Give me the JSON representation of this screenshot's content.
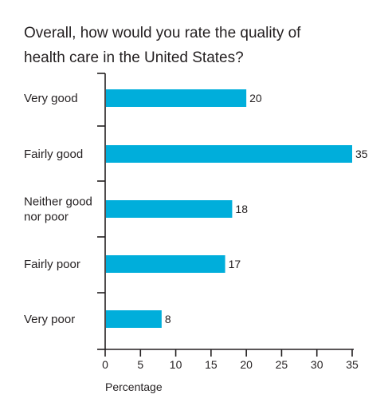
{
  "title_lines": [
    "Overall, how would you rate the quality of",
    "health care in the United States?"
  ],
  "chart_data": {
    "type": "bar",
    "orientation": "horizontal",
    "title": "Overall, how would you rate the quality of health care in the United States?",
    "categories": [
      [
        "Very good"
      ],
      [
        "Fairly good"
      ],
      [
        "Neither good",
        "nor poor"
      ],
      [
        "Fairly poor"
      ],
      [
        "Very poor"
      ]
    ],
    "values": [
      20,
      35,
      18,
      17,
      8
    ],
    "xlabel": "Percentage",
    "xlim": [
      0,
      35
    ],
    "xticks": [
      0,
      5,
      10,
      15,
      20,
      25,
      30,
      35
    ],
    "bar_color": "#00aedb",
    "grid": false
  }
}
